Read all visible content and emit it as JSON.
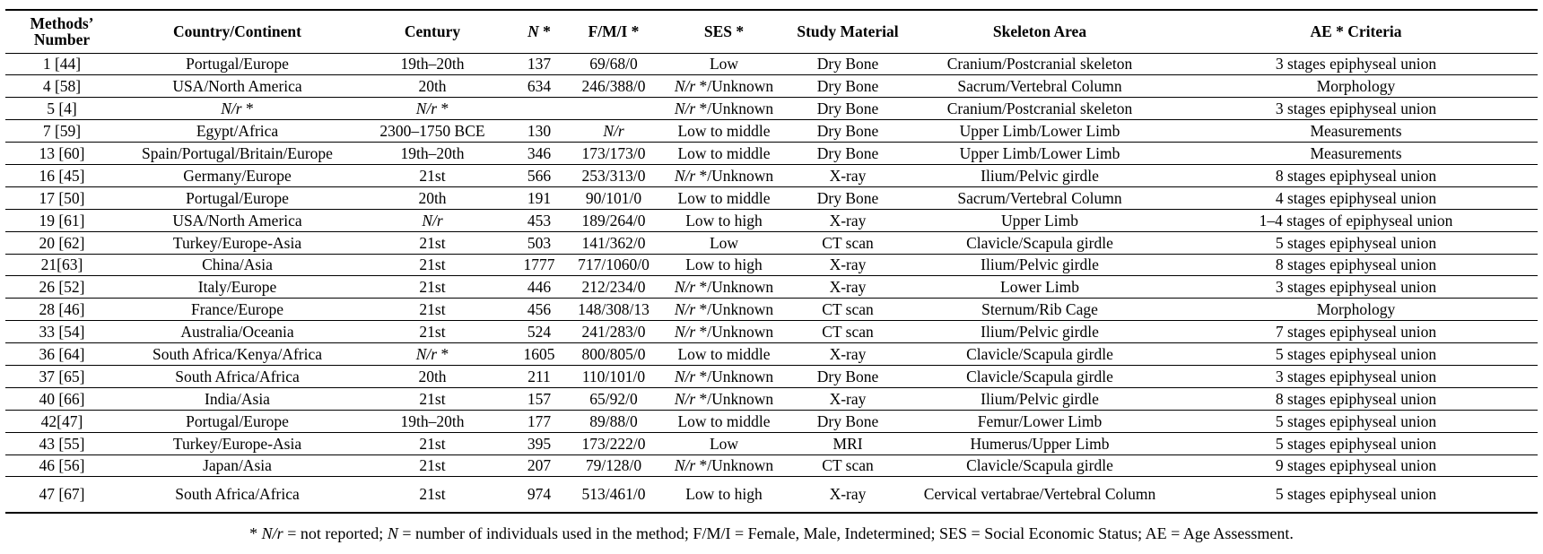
{
  "headers": [
    {
      "pre": "Methods’ Number",
      "it": "",
      "post": ""
    },
    {
      "pre": "Country/Continent",
      "it": "",
      "post": ""
    },
    {
      "pre": "Century",
      "it": "",
      "post": ""
    },
    {
      "pre": "",
      "it": "N",
      "post": " *"
    },
    {
      "pre": "F/M/I *",
      "it": "",
      "post": ""
    },
    {
      "pre": "SES *",
      "it": "",
      "post": ""
    },
    {
      "pre": "Study Material",
      "it": "",
      "post": ""
    },
    {
      "pre": "Skeleton Area",
      "it": "",
      "post": ""
    },
    {
      "pre": "AE * Criteria",
      "it": "",
      "post": ""
    }
  ],
  "rows": [
    [
      "1 [44]",
      "Portugal/Europe",
      "19th–20th",
      "137",
      "69/68/0",
      "Low",
      "Dry Bone",
      "Cranium/Postcranial skeleton",
      "3 stages epiphyseal union"
    ],
    [
      "4 [58]",
      "USA/North America",
      "20th",
      "634",
      "246/388/0",
      "N/r */Unknown",
      "Dry Bone",
      "Sacrum/Vertebral Column",
      "Morphology"
    ],
    [
      "5 [4]",
      "N/r *",
      "N/r *",
      "",
      "",
      "N/r */Unknown",
      "Dry Bone",
      "Cranium/Postcranial skeleton",
      "3 stages epiphyseal union"
    ],
    [
      "7 [59]",
      "Egypt/Africa",
      "2300–1750 BCE",
      "130",
      "N/r",
      "Low to middle",
      "Dry Bone",
      "Upper Limb/Lower Limb",
      "Measurements"
    ],
    [
      "13 [60]",
      "Spain/Portugal/Britain/Europe",
      "19th–20th",
      "346",
      "173/173/0",
      "Low to middle",
      "Dry Bone",
      "Upper Limb/Lower Limb",
      "Measurements"
    ],
    [
      "16 [45]",
      "Germany/Europe",
      "21st",
      "566",
      "253/313/0",
      "N/r */Unknown",
      "X-ray",
      "Ilium/Pelvic girdle",
      "8 stages epiphyseal union"
    ],
    [
      "17 [50]",
      "Portugal/Europe",
      "20th",
      "191",
      "90/101/0",
      "Low to middle",
      "Dry Bone",
      "Sacrum/Vertebral Column",
      "4 stages epiphyseal union"
    ],
    [
      "19 [61]",
      "USA/North America",
      "N/r",
      "453",
      "189/264/0",
      "Low to high",
      "X-ray",
      "Upper Limb",
      "1–4 stages of epiphyseal union"
    ],
    [
      "20 [62]",
      "Turkey/Europe-Asia",
      "21st",
      "503",
      "141/362/0",
      "Low",
      "CT scan",
      "Clavicle/Scapula girdle",
      "5 stages epiphyseal union"
    ],
    [
      "21[63]",
      "China/Asia",
      "21st",
      "1777",
      "717/1060/0",
      "Low to high",
      "X-ray",
      "Ilium/Pelvic girdle",
      "8 stages epiphyseal union"
    ],
    [
      "26 [52]",
      "Italy/Europe",
      "21st",
      "446",
      "212/234/0",
      "N/r */Unknown",
      "X-ray",
      "Lower Limb",
      "3 stages epiphyseal union"
    ],
    [
      "28 [46]",
      "France/Europe",
      "21st",
      "456",
      "148/308/13",
      "N/r */Unknown",
      "CT scan",
      "Sternum/Rib Cage",
      "Morphology"
    ],
    [
      "33 [54]",
      "Australia/Oceania",
      "21st",
      "524",
      "241/283/0",
      "N/r */Unknown",
      "CT scan",
      "Ilium/Pelvic girdle",
      "7 stages epiphyseal union"
    ],
    [
      "36 [64]",
      "South Africa/Kenya/Africa",
      "N/r *",
      "1605",
      "800/805/0",
      "Low to middle",
      "X-ray",
      "Clavicle/Scapula girdle",
      "5 stages epiphyseal union"
    ],
    [
      "37 [65]",
      "South Africa/Africa",
      "20th",
      "211",
      "110/101/0",
      "N/r */Unknown",
      "Dry Bone",
      "Clavicle/Scapula girdle",
      "3 stages epiphyseal union"
    ],
    [
      "40 [66]",
      "India/Asia",
      "21st",
      "157",
      "65/92/0",
      "N/r */Unknown",
      "X-ray",
      "Ilium/Pelvic girdle",
      "8 stages epiphyseal union"
    ],
    [
      "42[47]",
      "Portugal/Europe",
      "19th–20th",
      "177",
      "89/88/0",
      "Low to middle",
      "Dry Bone",
      "Femur/Lower Limb",
      "5 stages epiphyseal union"
    ],
    [
      "43 [55]",
      "Turkey/Europe-Asia",
      "21st",
      "395",
      "173/222/0",
      "Low",
      "MRI",
      "Humerus/Upper Limb",
      "5 stages epiphyseal union"
    ],
    [
      "46 [56]",
      "Japan/Asia",
      "21st",
      "207",
      "79/128/0",
      "N/r */Unknown",
      "CT scan",
      "Clavicle/Scapula girdle",
      "9 stages epiphyseal union"
    ],
    [
      "47 [67]",
      "South Africa/Africa",
      "21st",
      "974",
      "513/461/0",
      "Low to high",
      "X-ray",
      "Cervical vertabrae/Vertebral Column",
      "5 stages epiphyseal union"
    ]
  ],
  "footnote": [
    {
      "t": "* ",
      "i": false
    },
    {
      "t": "N/r",
      "i": true
    },
    {
      "t": " = not reported; ",
      "i": false
    },
    {
      "t": "N",
      "i": true
    },
    {
      "t": " = number of individuals used in the method; F/M/I = Female, Male, Indetermined; SES = Social Economic Status; AE = Age Assessment.",
      "i": false
    }
  ]
}
